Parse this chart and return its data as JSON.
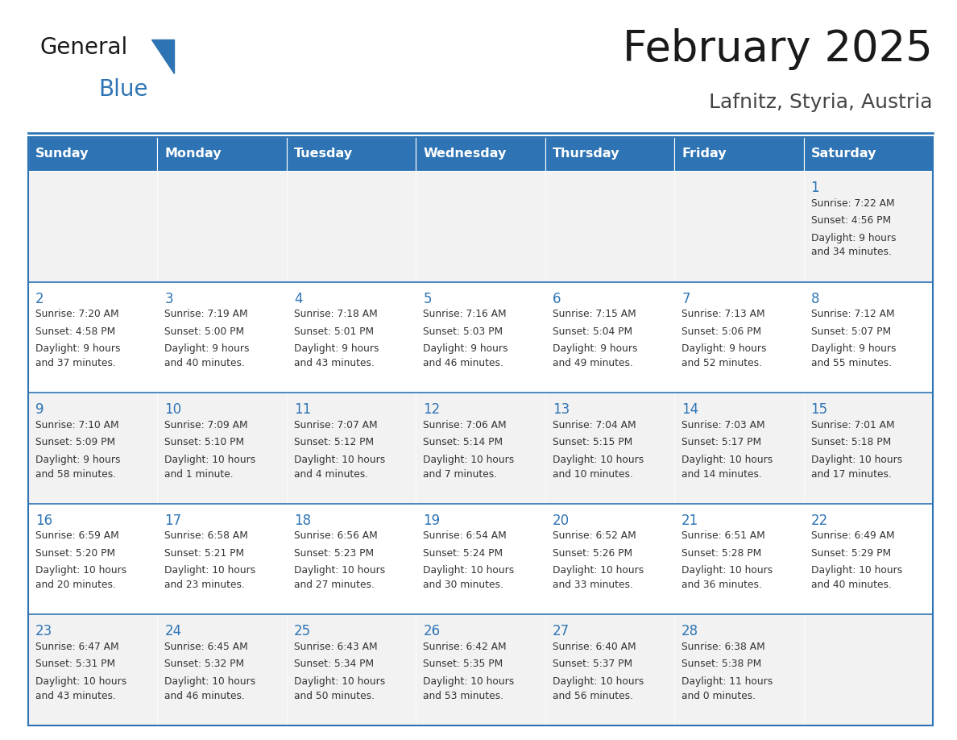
{
  "title": "February 2025",
  "subtitle": "Lafnitz, Styria, Austria",
  "days_of_week": [
    "Sunday",
    "Monday",
    "Tuesday",
    "Wednesday",
    "Thursday",
    "Friday",
    "Saturday"
  ],
  "header_bg": "#2E74B5",
  "header_text": "#FFFFFF",
  "row_bg_even": "#F2F2F2",
  "row_bg_odd": "#FFFFFF",
  "divider_color": "#2E74B5",
  "title_color": "#1a1a1a",
  "subtitle_color": "#444444",
  "day_number_color": "#2E74B5",
  "cell_text_color": "#333333",
  "logo_general_color": "#1a1a1a",
  "logo_blue_color": "#2E74B5",
  "logo_triangle_color": "#2E74B5",
  "calendar": [
    [
      {
        "day": null,
        "sunrise": null,
        "sunset": null,
        "daylight": null
      },
      {
        "day": null,
        "sunrise": null,
        "sunset": null,
        "daylight": null
      },
      {
        "day": null,
        "sunrise": null,
        "sunset": null,
        "daylight": null
      },
      {
        "day": null,
        "sunrise": null,
        "sunset": null,
        "daylight": null
      },
      {
        "day": null,
        "sunrise": null,
        "sunset": null,
        "daylight": null
      },
      {
        "day": null,
        "sunrise": null,
        "sunset": null,
        "daylight": null
      },
      {
        "day": 1,
        "sunrise": "7:22 AM",
        "sunset": "4:56 PM",
        "daylight": "9 hours\nand 34 minutes."
      }
    ],
    [
      {
        "day": 2,
        "sunrise": "7:20 AM",
        "sunset": "4:58 PM",
        "daylight": "9 hours\nand 37 minutes."
      },
      {
        "day": 3,
        "sunrise": "7:19 AM",
        "sunset": "5:00 PM",
        "daylight": "9 hours\nand 40 minutes."
      },
      {
        "day": 4,
        "sunrise": "7:18 AM",
        "sunset": "5:01 PM",
        "daylight": "9 hours\nand 43 minutes."
      },
      {
        "day": 5,
        "sunrise": "7:16 AM",
        "sunset": "5:03 PM",
        "daylight": "9 hours\nand 46 minutes."
      },
      {
        "day": 6,
        "sunrise": "7:15 AM",
        "sunset": "5:04 PM",
        "daylight": "9 hours\nand 49 minutes."
      },
      {
        "day": 7,
        "sunrise": "7:13 AM",
        "sunset": "5:06 PM",
        "daylight": "9 hours\nand 52 minutes."
      },
      {
        "day": 8,
        "sunrise": "7:12 AM",
        "sunset": "5:07 PM",
        "daylight": "9 hours\nand 55 minutes."
      }
    ],
    [
      {
        "day": 9,
        "sunrise": "7:10 AM",
        "sunset": "5:09 PM",
        "daylight": "9 hours\nand 58 minutes."
      },
      {
        "day": 10,
        "sunrise": "7:09 AM",
        "sunset": "5:10 PM",
        "daylight": "10 hours\nand 1 minute."
      },
      {
        "day": 11,
        "sunrise": "7:07 AM",
        "sunset": "5:12 PM",
        "daylight": "10 hours\nand 4 minutes."
      },
      {
        "day": 12,
        "sunrise": "7:06 AM",
        "sunset": "5:14 PM",
        "daylight": "10 hours\nand 7 minutes."
      },
      {
        "day": 13,
        "sunrise": "7:04 AM",
        "sunset": "5:15 PM",
        "daylight": "10 hours\nand 10 minutes."
      },
      {
        "day": 14,
        "sunrise": "7:03 AM",
        "sunset": "5:17 PM",
        "daylight": "10 hours\nand 14 minutes."
      },
      {
        "day": 15,
        "sunrise": "7:01 AM",
        "sunset": "5:18 PM",
        "daylight": "10 hours\nand 17 minutes."
      }
    ],
    [
      {
        "day": 16,
        "sunrise": "6:59 AM",
        "sunset": "5:20 PM",
        "daylight": "10 hours\nand 20 minutes."
      },
      {
        "day": 17,
        "sunrise": "6:58 AM",
        "sunset": "5:21 PM",
        "daylight": "10 hours\nand 23 minutes."
      },
      {
        "day": 18,
        "sunrise": "6:56 AM",
        "sunset": "5:23 PM",
        "daylight": "10 hours\nand 27 minutes."
      },
      {
        "day": 19,
        "sunrise": "6:54 AM",
        "sunset": "5:24 PM",
        "daylight": "10 hours\nand 30 minutes."
      },
      {
        "day": 20,
        "sunrise": "6:52 AM",
        "sunset": "5:26 PM",
        "daylight": "10 hours\nand 33 minutes."
      },
      {
        "day": 21,
        "sunrise": "6:51 AM",
        "sunset": "5:28 PM",
        "daylight": "10 hours\nand 36 minutes."
      },
      {
        "day": 22,
        "sunrise": "6:49 AM",
        "sunset": "5:29 PM",
        "daylight": "10 hours\nand 40 minutes."
      }
    ],
    [
      {
        "day": 23,
        "sunrise": "6:47 AM",
        "sunset": "5:31 PM",
        "daylight": "10 hours\nand 43 minutes."
      },
      {
        "day": 24,
        "sunrise": "6:45 AM",
        "sunset": "5:32 PM",
        "daylight": "10 hours\nand 46 minutes."
      },
      {
        "day": 25,
        "sunrise": "6:43 AM",
        "sunset": "5:34 PM",
        "daylight": "10 hours\nand 50 minutes."
      },
      {
        "day": 26,
        "sunrise": "6:42 AM",
        "sunset": "5:35 PM",
        "daylight": "10 hours\nand 53 minutes."
      },
      {
        "day": 27,
        "sunrise": "6:40 AM",
        "sunset": "5:37 PM",
        "daylight": "10 hours\nand 56 minutes."
      },
      {
        "day": 28,
        "sunrise": "6:38 AM",
        "sunset": "5:38 PM",
        "daylight": "11 hours\nand 0 minutes."
      },
      {
        "day": null,
        "sunrise": null,
        "sunset": null,
        "daylight": null
      }
    ]
  ],
  "figsize": [
    11.88,
    9.18
  ],
  "dpi": 100
}
